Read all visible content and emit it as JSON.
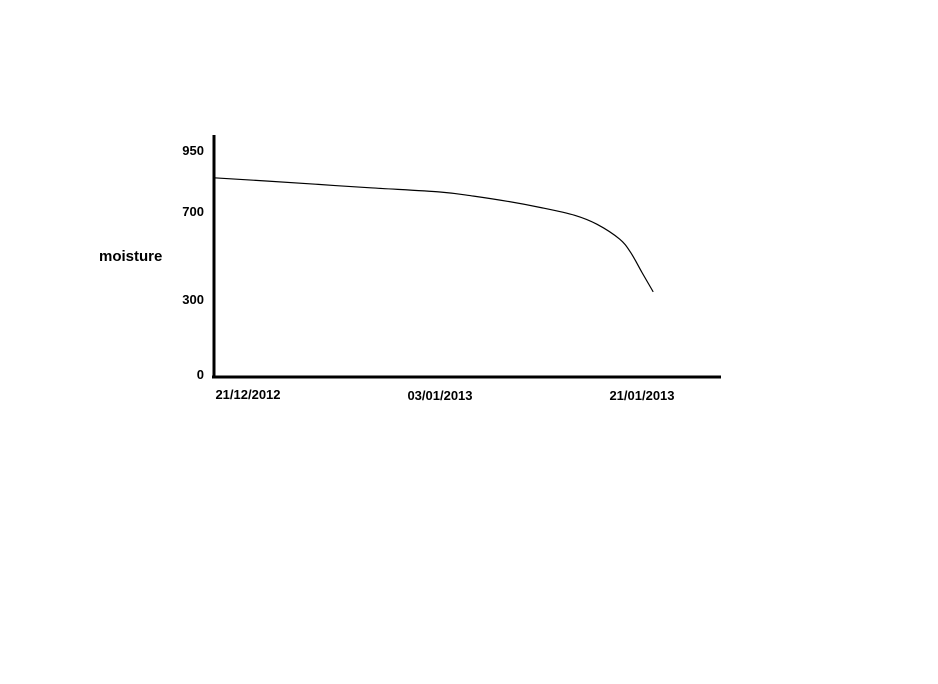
{
  "chart_data": {
    "type": "line",
    "title": "",
    "xlabel": "",
    "ylabel": "moisture",
    "x_ticks": [
      "21/12/2012",
      "03/01/2013",
      "21/01/2013"
    ],
    "y_ticks": [
      0,
      300,
      700,
      950
    ],
    "grid": false,
    "legend": "none",
    "colors": {
      "line": "#000000",
      "axis": "#000000"
    },
    "series": [
      {
        "x": [
          "21/12/2012",
          "24/12/2012",
          "27/12/2012",
          "30/12/2012",
          "03/01/2013",
          "06/01/2013",
          "09/01/2013",
          "12/01/2013",
          "15/01/2013",
          "17/01/2013",
          "19/01/2013",
          "20/01/2013",
          "21/01/2013",
          "22/01/2013"
        ],
        "y": [
          840,
          827,
          813,
          799,
          782,
          765,
          744,
          718,
          685,
          644,
          577,
          515,
          425,
          337
        ]
      }
    ]
  }
}
